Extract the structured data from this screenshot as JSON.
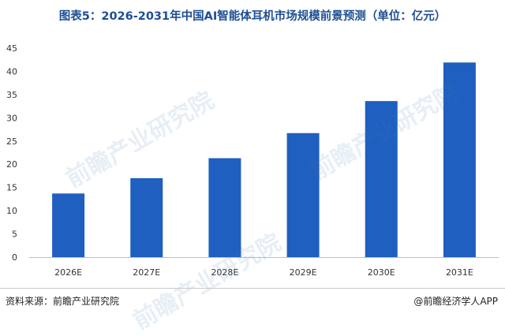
{
  "title": "图表5：2026-2031年中国AI智能体耳机市场规模前景预测（单位：亿元）",
  "source": "资料来源：前瞻产业研究院",
  "credit": "@前瞻经济学人APP",
  "watermark_text": "前瞻产业研究院",
  "colors": {
    "bar": "#1f5fbf",
    "title": "#1d4f95",
    "axis": "#bfbfbf"
  },
  "chart_data": {
    "type": "bar",
    "categories": [
      "2026E",
      "2027E",
      "2028E",
      "2029E",
      "2030E",
      "2031E"
    ],
    "values": [
      13.7,
      17.0,
      21.3,
      26.7,
      33.6,
      41.9
    ],
    "ylim": [
      0,
      45
    ],
    "yticks": [
      0,
      5,
      10,
      15,
      20,
      25,
      30,
      35,
      40,
      45
    ],
    "grid": false
  }
}
